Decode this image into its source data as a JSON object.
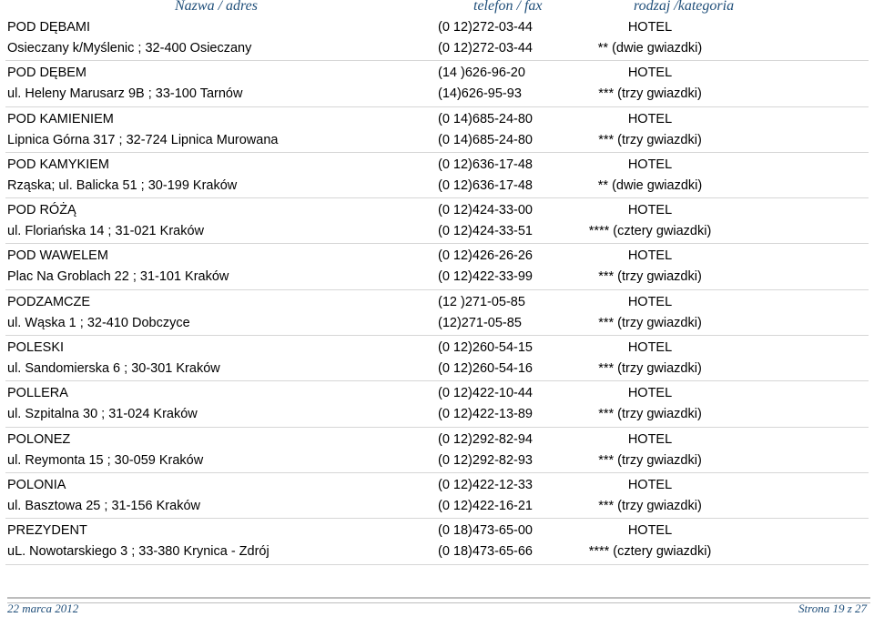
{
  "header": {
    "name": "Nazwa / adres",
    "phone": "telefon / fax",
    "type": "rodzaj /kategoria"
  },
  "records": [
    {
      "name": "POD DĘBAMI",
      "address": "Osieczany k/Myślenic ;  32-400 Osieczany",
      "phone1": "(0 12)272-03-44",
      "phone2": "(0 12)272-03-44",
      "type": "HOTEL",
      "category": "** (dwie gwiazdki)"
    },
    {
      "name": "POD DĘBEM",
      "address": "ul. Heleny Marusarz 9B ;  33-100 Tarnów",
      "phone1": "(14 )626-96-20",
      "phone2": "(14)626-95-93",
      "type": "HOTEL",
      "category": "*** (trzy gwiazdki)"
    },
    {
      "name": "POD KAMIENIEM",
      "address": "Lipnica Górna 317 ;  32-724 Lipnica Murowana",
      "phone1": "(0 14)685-24-80",
      "phone2": "(0 14)685-24-80",
      "type": "HOTEL",
      "category": "*** (trzy gwiazdki)"
    },
    {
      "name": "POD KAMYKIEM",
      "address": "Rząska; ul. Balicka 51 ;  30-199 Kraków",
      "phone1": "(0 12)636-17-48",
      "phone2": "(0 12)636-17-48",
      "type": "HOTEL",
      "category": "** (dwie gwiazdki)"
    },
    {
      "name": "POD RÓŻĄ",
      "address": "ul. Floriańska 14 ;  31-021 Kraków",
      "phone1": "(0 12)424-33-00",
      "phone2": "(0 12)424-33-51",
      "type": "HOTEL",
      "category": "**** (cztery gwiazdki)"
    },
    {
      "name": "POD WAWELEM",
      "address": "Plac Na Groblach 22 ;  31-101 Kraków",
      "phone1": "(0 12)426-26-26",
      "phone2": "(0 12)422-33-99",
      "type": "HOTEL",
      "category": "*** (trzy gwiazdki)"
    },
    {
      "name": "PODZAMCZE",
      "address": "ul. Wąska 1 ;  32-410 Dobczyce",
      "phone1": "(12 )271-05-85",
      "phone2": "(12)271-05-85",
      "type": "HOTEL",
      "category": "*** (trzy gwiazdki)"
    },
    {
      "name": "POLESKI",
      "address": "ul. Sandomierska 6 ;  30-301 Kraków",
      "phone1": "(0 12)260-54-15",
      "phone2": "(0 12)260-54-16",
      "type": "HOTEL",
      "category": "*** (trzy gwiazdki)"
    },
    {
      "name": "POLLERA",
      "address": "ul. Szpitalna 30 ;  31-024 Kraków",
      "phone1": "(0 12)422-10-44",
      "phone2": "(0 12)422-13-89",
      "type": "HOTEL",
      "category": "*** (trzy gwiazdki)"
    },
    {
      "name": "POLONEZ",
      "address": "ul. Reymonta 15 ;  30-059 Kraków",
      "phone1": "(0 12)292-82-94",
      "phone2": "(0 12)292-82-93",
      "type": "HOTEL",
      "category": "*** (trzy gwiazdki)"
    },
    {
      "name": "POLONIA",
      "address": "ul. Basztowa 25 ;  31-156 Kraków",
      "phone1": "(0 12)422-12-33",
      "phone2": "(0 12)422-16-21",
      "type": "HOTEL",
      "category": "*** (trzy gwiazdki)"
    },
    {
      "name": "PREZYDENT",
      "address": "uL. Nowotarskiego 3 ;  33-380 Krynica - Zdrój",
      "phone1": "(0 18)473-65-00",
      "phone2": "(0 18)473-65-66",
      "type": "HOTEL",
      "category": "**** (cztery gwiazdki)"
    }
  ],
  "footer": {
    "date": "22 marca 2012",
    "page": "Strona 19 z 27"
  }
}
